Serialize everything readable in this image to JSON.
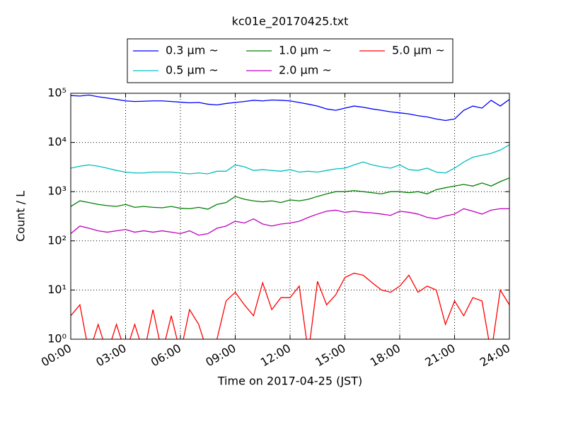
{
  "chart_data": {
    "type": "line",
    "title": "kc01e_20170425.txt",
    "xlabel": "Time on 2017-04-25 (JST)",
    "ylabel": "Count / L",
    "x": [
      0,
      0.5,
      1,
      1.5,
      2,
      2.5,
      3,
      3.5,
      4,
      4.5,
      5,
      5.5,
      6,
      6.5,
      7,
      7.5,
      8,
      8.5,
      9,
      9.5,
      10,
      10.5,
      11,
      11.5,
      12,
      12.5,
      13,
      13.5,
      14,
      14.5,
      15,
      15.5,
      16,
      16.5,
      17,
      17.5,
      18,
      18.5,
      19,
      19.5,
      20,
      20.5,
      21,
      21.5,
      22,
      22.5,
      23,
      23.5,
      24
    ],
    "series": [
      {
        "name": "0.3 μm ~",
        "color": "#0000ff",
        "values": [
          90000,
          88000,
          92000,
          85000,
          80000,
          75000,
          70000,
          68000,
          69000,
          70000,
          70000,
          68000,
          66000,
          64000,
          65000,
          60000,
          58000,
          62000,
          65000,
          68000,
          72000,
          70000,
          73000,
          72000,
          70000,
          65000,
          60000,
          55000,
          48000,
          45000,
          50000,
          55000,
          52000,
          48000,
          45000,
          42000,
          40000,
          38000,
          35000,
          33000,
          30000,
          28000,
          30000,
          45000,
          55000,
          50000,
          72000,
          55000,
          75000
        ]
      },
      {
        "name": "0.5 μm ~",
        "color": "#00bfbf",
        "values": [
          3000,
          3300,
          3500,
          3300,
          3000,
          2700,
          2500,
          2400,
          2400,
          2500,
          2500,
          2500,
          2400,
          2300,
          2400,
          2300,
          2600,
          2600,
          3500,
          3200,
          2700,
          2800,
          2700,
          2600,
          2800,
          2500,
          2600,
          2500,
          2700,
          2900,
          3000,
          3500,
          4000,
          3500,
          3200,
          3000,
          3500,
          2800,
          2700,
          3000,
          2500,
          2400,
          3000,
          4000,
          5000,
          5500,
          6000,
          7000,
          9000
        ]
      },
      {
        "name": "1.0 μm ~",
        "color": "#008000",
        "values": [
          500,
          650,
          600,
          550,
          520,
          500,
          550,
          480,
          500,
          480,
          470,
          500,
          460,
          450,
          480,
          440,
          550,
          600,
          800,
          700,
          650,
          620,
          650,
          600,
          680,
          650,
          700,
          800,
          900,
          1000,
          1000,
          1050,
          1000,
          950,
          900,
          1000,
          1000,
          950,
          1000,
          900,
          1100,
          1200,
          1300,
          1400,
          1300,
          1500,
          1300,
          1600,
          1900
        ]
      },
      {
        "name": "2.0 μm ~",
        "color": "#bf00bf",
        "values": [
          140,
          200,
          180,
          160,
          150,
          160,
          170,
          150,
          160,
          150,
          160,
          150,
          140,
          160,
          130,
          140,
          180,
          200,
          250,
          230,
          280,
          220,
          200,
          220,
          230,
          250,
          300,
          350,
          400,
          420,
          380,
          400,
          380,
          370,
          350,
          330,
          400,
          380,
          350,
          300,
          280,
          320,
          350,
          450,
          400,
          350,
          420,
          450,
          450
        ]
      },
      {
        "name": "5.0 μm ~",
        "color": "#ff0000",
        "values": [
          3,
          5,
          0,
          2,
          0,
          2,
          0,
          2,
          0,
          4,
          0,
          3,
          0,
          4,
          2,
          0,
          1,
          6,
          9,
          5,
          3,
          14,
          4,
          7,
          7,
          12,
          0,
          15,
          5,
          8,
          18,
          22,
          20,
          14,
          10,
          9,
          12,
          20,
          9,
          12,
          10,
          2,
          6,
          3,
          7,
          6,
          0,
          10,
          5
        ]
      }
    ],
    "xlim": [
      0,
      24
    ],
    "xticks": [
      {
        "value": 0,
        "label": "00:00"
      },
      {
        "value": 3,
        "label": "03:00"
      },
      {
        "value": 6,
        "label": "06:00"
      },
      {
        "value": 9,
        "label": "09:00"
      },
      {
        "value": 12,
        "label": "12:00"
      },
      {
        "value": 15,
        "label": "15:00"
      },
      {
        "value": 18,
        "label": "18:00"
      },
      {
        "value": 21,
        "label": "21:00"
      },
      {
        "value": 24,
        "label": "24:00"
      }
    ],
    "ylim": [
      1,
      100000
    ],
    "yticks": [
      {
        "value": 1,
        "label": "10⁰"
      },
      {
        "value": 10,
        "label": "10¹"
      },
      {
        "value": 100,
        "label": "10²"
      },
      {
        "value": 1000,
        "label": "10³"
      },
      {
        "value": 10000,
        "label": "10⁴"
      },
      {
        "value": 100000,
        "label": "10⁵"
      }
    ],
    "yscale": "log",
    "grid": true,
    "legend": "upper center"
  }
}
